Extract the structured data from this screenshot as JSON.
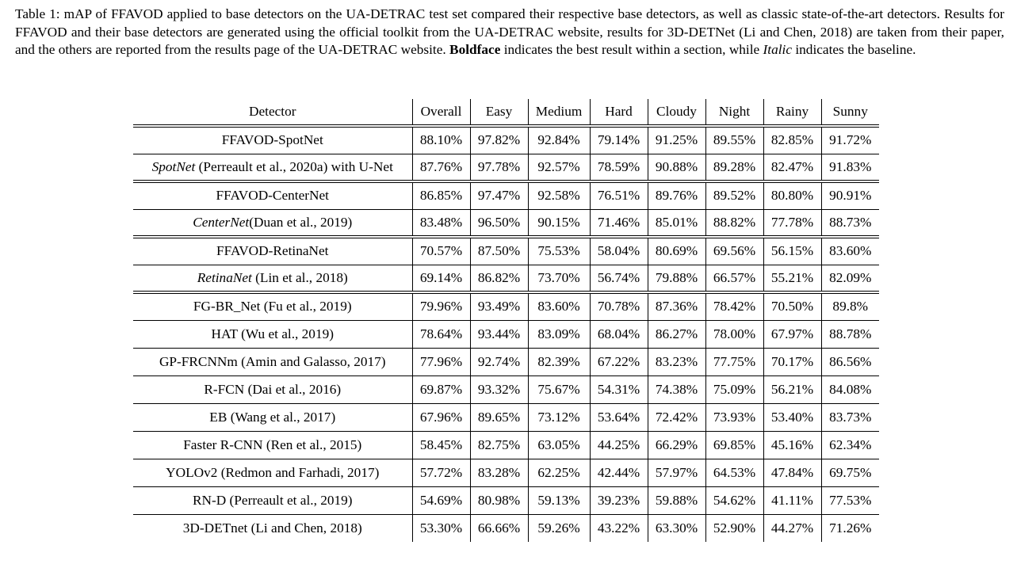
{
  "caption": {
    "label": "Table 1:",
    "text_a": "mAP of FFAVOD applied to base detectors on the UA-DETRAC test set compared their respective base detectors, as well as classic state-of-the-art detectors. Results for FFAVOD and their base detectors are generated using the official toolkit from the UA-DETRAC website, results for 3D-DETNet (Li and Chen, 2018) are taken from their paper, and the others are reported from the results page of the UA-DETRAC website.",
    "bold_word": "Boldface",
    "text_b": "indicates the best result within a section, while",
    "italic_word": "Italic",
    "text_c": "indicates the baseline."
  },
  "table": {
    "headers": [
      "Detector",
      "Overall",
      "Easy",
      "Medium",
      "Hard",
      "Cloudy",
      "Night",
      "Rainy",
      "Sunny"
    ],
    "rows": [
      {
        "detector": "FFAVOD-SpotNet",
        "name_italic": "",
        "cite": "",
        "values": [
          "88.10%",
          "97.82%",
          "92.84%",
          "79.14%",
          "91.25%",
          "89.55%",
          "82.85%",
          "91.72%"
        ],
        "bold": [
          true,
          true,
          true,
          true,
          true,
          true,
          true,
          false
        ]
      },
      {
        "detector": "",
        "name_italic": "SpotNet",
        "cite": "(Perreault et al., 2020a) with U-Net",
        "values": [
          "87.76%",
          "97.78%",
          "92.57%",
          "78.59%",
          "90.88%",
          "89.28%",
          "82.47%",
          "91.83%"
        ],
        "bold": [
          false,
          false,
          false,
          false,
          false,
          false,
          false,
          true
        ]
      },
      {
        "detector": "FFAVOD-CenterNet",
        "name_italic": "",
        "cite": "",
        "values": [
          "86.85%",
          "97.47%",
          "92.58%",
          "76.51%",
          "89.76%",
          "89.52%",
          "80.80%",
          "90.91%"
        ],
        "bold": [
          true,
          true,
          true,
          true,
          true,
          true,
          true,
          true
        ]
      },
      {
        "detector": "",
        "name_italic": "CenterNet",
        "cite": "(Duan et al., 2019)",
        "values": [
          "83.48%",
          "96.50%",
          "90.15%",
          "71.46%",
          "85.01%",
          "88.82%",
          "77.78%",
          "88.73%"
        ],
        "bold": [
          false,
          false,
          false,
          false,
          false,
          false,
          false,
          false
        ]
      },
      {
        "detector": "FFAVOD-RetinaNet",
        "name_italic": "",
        "cite": "",
        "values": [
          "70.57%",
          "87.50%",
          "75.53%",
          "58.04%",
          "80.69%",
          "69.56%",
          "56.15%",
          "83.60%"
        ],
        "bold": [
          true,
          true,
          true,
          true,
          true,
          true,
          true,
          true
        ]
      },
      {
        "detector": "",
        "name_italic": "RetinaNet",
        "cite": "(Lin et al., 2018)",
        "values": [
          "69.14%",
          "86.82%",
          "73.70%",
          "56.74%",
          "79.88%",
          "66.57%",
          "55.21%",
          "82.09%"
        ],
        "bold": [
          false,
          false,
          false,
          false,
          false,
          false,
          false,
          false
        ]
      },
      {
        "detector": "FG-BR_Net (Fu et al., 2019)",
        "name_italic": "",
        "cite": "",
        "values": [
          "79.96%",
          "93.49%",
          "83.60%",
          "70.78%",
          "87.36%",
          "78.42%",
          "70.50%",
          "89.8%"
        ],
        "bold": [
          false,
          false,
          false,
          false,
          false,
          false,
          false,
          false
        ]
      },
      {
        "detector": "HAT (Wu et al., 2019)",
        "name_italic": "",
        "cite": "",
        "values": [
          "78.64%",
          "93.44%",
          "83.09%",
          "68.04%",
          "86.27%",
          "78.00%",
          "67.97%",
          "88.78%"
        ],
        "bold": [
          false,
          false,
          false,
          false,
          false,
          false,
          false,
          false
        ]
      },
      {
        "detector": "GP-FRCNNm (Amin and Galasso, 2017)",
        "name_italic": "",
        "cite": "",
        "values": [
          "77.96%",
          "92.74%",
          "82.39%",
          "67.22%",
          "83.23%",
          "77.75%",
          "70.17%",
          "86.56%"
        ],
        "bold": [
          false,
          false,
          false,
          false,
          false,
          false,
          false,
          false
        ]
      },
      {
        "detector": "R-FCN (Dai et al., 2016)",
        "name_italic": "",
        "cite": "",
        "values": [
          "69.87%",
          "93.32%",
          "75.67%",
          "54.31%",
          "74.38%",
          "75.09%",
          "56.21%",
          "84.08%"
        ],
        "bold": [
          false,
          false,
          false,
          false,
          false,
          false,
          false,
          false
        ]
      },
      {
        "detector": "EB (Wang et al., 2017)",
        "name_italic": "",
        "cite": "",
        "values": [
          "67.96%",
          "89.65%",
          "73.12%",
          "53.64%",
          "72.42%",
          "73.93%",
          "53.40%",
          "83.73%"
        ],
        "bold": [
          false,
          false,
          false,
          false,
          false,
          false,
          false,
          false
        ]
      },
      {
        "detector": "Faster R-CNN (Ren et al., 2015)",
        "name_italic": "",
        "cite": "",
        "values": [
          "58.45%",
          "82.75%",
          "63.05%",
          "44.25%",
          "66.29%",
          "69.85%",
          "45.16%",
          "62.34%"
        ],
        "bold": [
          false,
          false,
          false,
          false,
          false,
          false,
          false,
          false
        ]
      },
      {
        "detector": "YOLOv2 (Redmon and Farhadi, 2017)",
        "name_italic": "",
        "cite": "",
        "values": [
          "57.72%",
          "83.28%",
          "62.25%",
          "42.44%",
          "57.97%",
          "64.53%",
          "47.84%",
          "69.75%"
        ],
        "bold": [
          false,
          false,
          false,
          false,
          false,
          false,
          false,
          false
        ]
      },
      {
        "detector": "RN-D (Perreault et al., 2019)",
        "name_italic": "",
        "cite": "",
        "values": [
          "54.69%",
          "80.98%",
          "59.13%",
          "39.23%",
          "59.88%",
          "54.62%",
          "41.11%",
          "77.53%"
        ],
        "bold": [
          false,
          false,
          false,
          false,
          false,
          false,
          false,
          false
        ]
      },
      {
        "detector": "3D-DETnet (Li and Chen, 2018)",
        "name_italic": "",
        "cite": "",
        "values": [
          "53.30%",
          "66.66%",
          "59.26%",
          "43.22%",
          "63.30%",
          "52.90%",
          "44.27%",
          "71.26%"
        ],
        "bold": [
          false,
          false,
          false,
          false,
          false,
          false,
          false,
          false
        ]
      }
    ]
  }
}
